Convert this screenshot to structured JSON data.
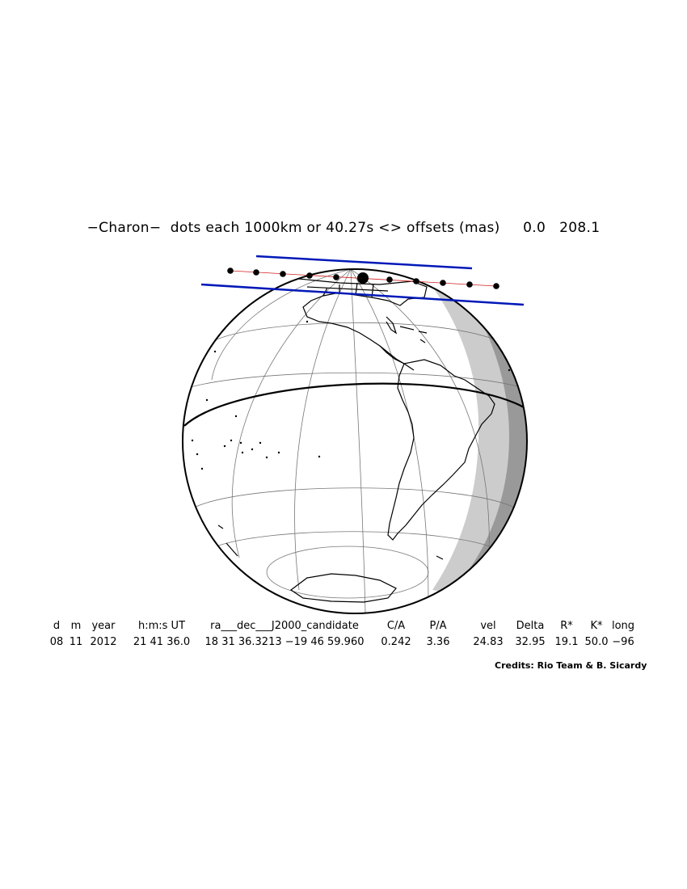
{
  "title": "−Charon−  dots each 1000km or 40.27s <> offsets (mas)     0.0   208.1",
  "table": {
    "headers": [
      "d",
      "m",
      "year",
      "h:m:s UT",
      "ra___dec___J2000_candidate",
      "C/A",
      "P/A",
      "vel",
      "Delta",
      "R*",
      "K*",
      "long"
    ],
    "values": [
      "08",
      "11",
      "2012",
      "21 41 36.0",
      "18 31 36.3213 −19 46 59.960",
      "0.242",
      "3.36",
      "24.83",
      "32.95",
      "19.1",
      "50.0",
      "−96"
    ]
  },
  "credits": "Credits: Rio Team & B. Sicardy",
  "colors": {
    "shadow_path": "#0018b8",
    "night_dark": "#999999",
    "night_light": "#cccccc",
    "center_line": "#d02020"
  }
}
